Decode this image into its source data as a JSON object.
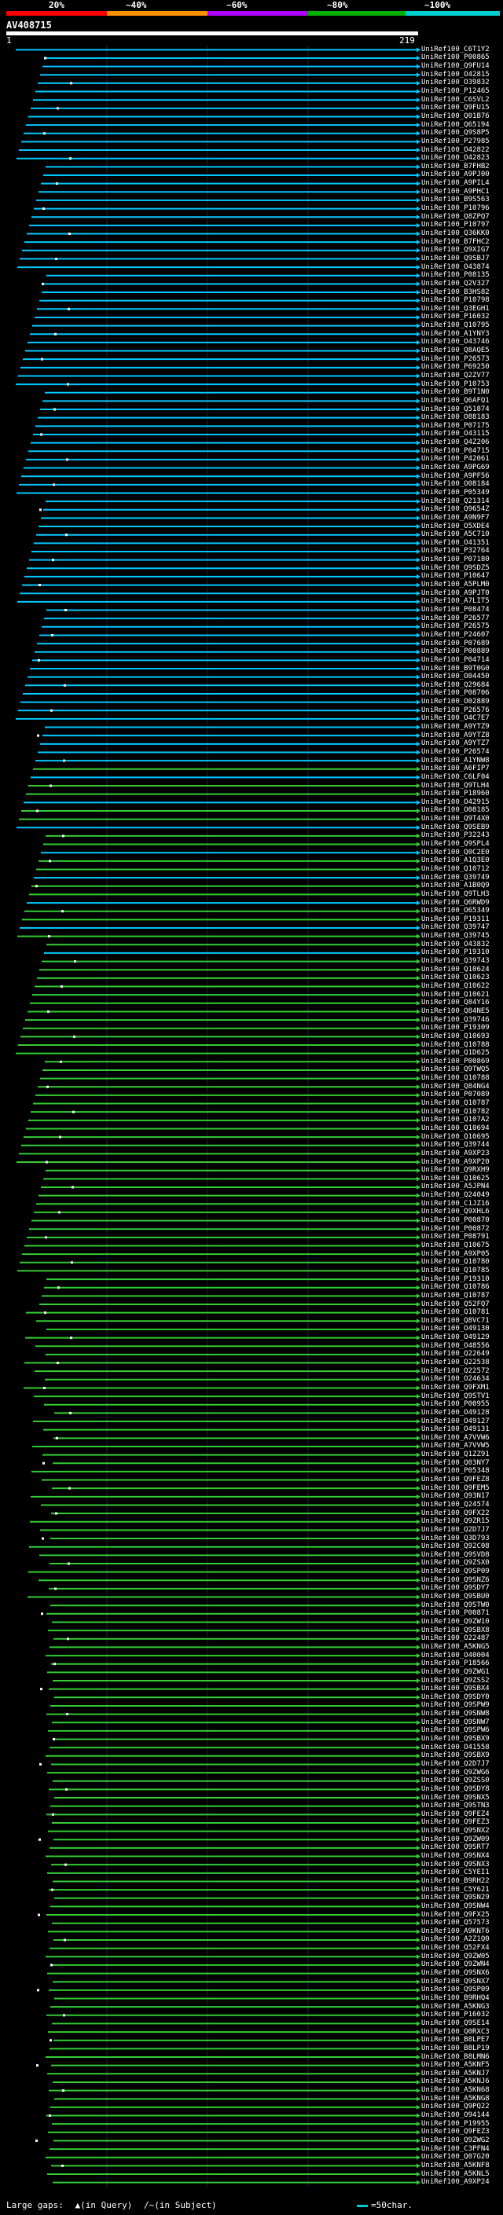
{
  "legend": {
    "ticks": [
      {
        "label": "20%",
        "color": "#ff0000"
      },
      {
        "label": "~40%",
        "color": "#ff9000"
      },
      {
        "label": "~60%",
        "color": "#b000ff"
      },
      {
        "label": "~80%",
        "color": "#00b000"
      },
      {
        "label": "~100%",
        "color": "#00d0d0"
      }
    ]
  },
  "query": {
    "id": "AV408715",
    "start": "1",
    "end": "219"
  },
  "rows_meta": {
    "colors": {
      "cyan": "#00c8ff",
      "green": "#33cc33",
      "magenta": "#ff44ff"
    }
  },
  "rows": [
    "UniRef100_C6T1Y2",
    "UniRef100_P00865",
    "UniRef100_Q9FU14",
    "UniRef100_O42815",
    "UniRef100_O39832",
    "UniRef100_P12465",
    "UniRef100_C6SVL2",
    "UniRef100_Q9FU15",
    "UniRef100_Q01B76",
    "UniRef100_Q65194",
    "UniRef100_Q9S8P5",
    "UniRef100_P27985",
    "UniRef100_O42822",
    "UniRef100_O42823",
    "UniRef100_B7FHB2",
    "UniRef100_A9PJ00",
    "UniRef100_A9PIL4",
    "UniRef100_A9PHC1",
    "UniRef100_B9S563",
    "UniRef100_P10796",
    "UniRef100_Q8ZPQ7",
    "UniRef100_P10797",
    "UniRef100_Q36KK0",
    "UniRef100_B7FHC2",
    "UniRef100_Q9XIG7",
    "UniRef100_Q9SBJ7",
    "UniRef100_O43874",
    "UniRef100_P08135",
    "UniRef100_Q2V327",
    "UniRef100_B3HS82",
    "UniRef100_P10798",
    "UniRef100_Q3EGH1",
    "UniRef100_P16032",
    "UniRef100_Q10795",
    "UniRef100_A1YNY3",
    "UniRef100_O43746",
    "UniRef100_Q8AQE5",
    "UniRef100_P26573",
    "UniRef100_P69250",
    "UniRef100_Q2ZV77",
    "UniRef100_P10753",
    "UniRef100_B9T1N0",
    "UniRef100_Q6AFQ1",
    "UniRef100_Q51874",
    "UniRef100_O88183",
    "UniRef100_P07175",
    "UniRef100_O43115",
    "UniRef100_Q4Z206",
    "UniRef100_P04715",
    "UniRef100_P42061",
    "UniRef100_A9PG69",
    "UniRef100_A9PF56",
    "UniRef100_O08184",
    "UniRef100_P05349",
    "UniRef100_Q21314",
    "UniRef100_Q9654Z",
    "UniRef100_A9N9F7",
    "UniRef100_O5XDE4",
    "UniRef100_A5C710",
    "UniRef100_O41351",
    "UniRef100_P32764",
    "UniRef100_P07180",
    "UniRef100_Q9SDZ5",
    "UniRef100_P10647",
    "UniRef100_A5PLM0",
    "UniRef100_A9PJT0",
    "UniRef100_A7LIT5",
    "UniRef100_P08474",
    "UniRef100_P26577",
    "UniRef100_P26575",
    "UniRef100_P24607",
    "UniRef100_P07689",
    "UniRef100_P00889",
    "UniRef100_P04714",
    "UniRef100_B9T0G0",
    "UniRef100_O04450",
    "UniRef100_Q29684",
    "UniRef100_P08706",
    "UniRef100_O02889",
    "UniRef100_P26576",
    "UniRef100_O4C7E7",
    "UniRef100_A9YTZ9",
    "UniRef100_A9YTZ8",
    "UniRef100_A9YTZ7",
    "UniRef100_P26574",
    "UniRef100_A1YNW8",
    "UniRef100_A6FIP7",
    "UniRef100_C6LF04",
    "UniRef100_Q9TLH4",
    "UniRef100_P18960",
    "UniRef100_O42915",
    "UniRef100_O08185",
    "UniRef100_Q9T4X0",
    "UniRef100_Q9SEB9",
    "UniRef100_P32243",
    "UniRef100_Q9SPL4",
    "UniRef100_Q0C2E0",
    "UniRef100_A1Q3E0",
    "UniRef100_Q10712",
    "UniRef100_Q39749",
    "UniRef100_A1B0Q9",
    "UniRef100_Q9TLH3",
    "UniRef100_Q6RWD9",
    "UniRef100_O65349",
    "UniRef100_P19311",
    "UniRef100_Q39747",
    "UniRef100_Q39745",
    "UniRef100_O43832",
    "UniRef100_P19310",
    "UniRef100_Q39743",
    "UniRef100_Q10624",
    "UniRef100_Q10623",
    "UniRef100_Q10622",
    "UniRef100_Q10621",
    "UniRef100_Q84Y16",
    "UniRef100_Q84NE5",
    "UniRef100_Q39746",
    "UniRef100_P19309",
    "UniRef100_Q10693",
    "UniRef100_Q10788",
    "UniRef100_Q1D625",
    "UniRef100_P00869",
    "UniRef100_Q9TWQ5",
    "UniRef100_Q10788",
    "UniRef100_Q84NG4",
    "UniRef100_P07089",
    "UniRef100_Q10787",
    "UniRef100_Q10782",
    "UniRef100_Q107A2",
    "UniRef100_Q10694",
    "UniRef100_Q10695",
    "UniRef100_Q39744",
    "UniRef100_A9XP23",
    "UniRef100_A9XP20",
    "UniRef100_Q9RXH9",
    "UniRef100_Q10625",
    "UniRef100_A5JPN4",
    "UniRef100_Q24049",
    "UniRef100_C1JZ16",
    "UniRef100_Q9XHL6",
    "UniRef100_P00870",
    "UniRef100_P00872",
    "UniRef100_P08791",
    "UniRef100_Q10675",
    "UniRef100_A9XP05",
    "UniRef100_Q10780",
    "UniRef100_Q10785",
    "UniRef100_P19310",
    "UniRef100_Q10786",
    "UniRef100_Q10787",
    "UniRef100_Q52FQ7",
    "UniRef100_Q10781",
    "UniRef100_Q8VC71",
    "UniRef100_O49130",
    "UniRef100_O49129",
    "UniRef100_O48556",
    "UniRef100_Q22649",
    "UniRef100_Q22538",
    "UniRef100_Q22572",
    "UniRef100_O24634",
    "UniRef100_Q9FXM1",
    "UniRef100_Q9STV1",
    "UniRef100_P00955",
    "UniRef100_O49128",
    "UniRef100_O49127",
    "UniRef100_O49131",
    "UniRef100_A7VVW6",
    "UniRef100_A7VVW5",
    "UniRef100_Q1ZZ91",
    "UniRef100_Q03NY7",
    "UniRef100_P05348",
    "UniRef100_Q9FEZ8",
    "UniRef100_Q9FEM5",
    "UniRef100_Q93N17",
    "UniRef100_Q24574",
    "UniRef100_Q9FX22",
    "UniRef100_Q9ZR15",
    "UniRef100_Q2D7J7",
    "UniRef100_Q3D793",
    "UniRef100_Q92C08",
    "UniRef100_Q9SVD8",
    "UniRef100_Q9ZSX0",
    "UniRef100_Q9SP09",
    "UniRef100_Q9SNZ6",
    "UniRef100_Q9SDY7",
    "UniRef100_Q9SBU0",
    "UniRef100_Q9STW0",
    "UniRef100_P00871",
    "UniRef100_Q9ZW10",
    "UniRef100_Q9SBX8",
    "UniRef100_O22487",
    "UniRef100_A5KNG5",
    "UniRef100_O40004",
    "UniRef100_P18566",
    "UniRef100_Q9ZWG1",
    "UniRef100_Q9ZSS2",
    "UniRef100_Q9SBX4",
    "UniRef100_Q9SDY0",
    "UniRef100_Q9SPW9",
    "UniRef100_Q9SNW8",
    "UniRef100_Q9SNW7",
    "UniRef100_Q9SPW6",
    "UniRef100_Q9SBX9",
    "UniRef100_O41558",
    "UniRef100_Q9SBX9",
    "UniRef100_Q2D7J7",
    "UniRef100_Q9ZWG6",
    "UniRef100_Q9ZSS0",
    "UniRef100_Q9SDY8",
    "UniRef100_Q9SNX5",
    "UniRef100_Q9STN3",
    "UniRef100_Q9FEZ4",
    "UniRef100_Q9FEZ3",
    "UniRef100_Q9SNX2",
    "UniRef100_Q9ZW09",
    "UniRef100_Q9SRT7",
    "UniRef100_Q9SNX4",
    "UniRef100_Q9SNX3",
    "UniRef100_C5YEI1",
    "UniRef100_B9RH22",
    "UniRef100_C5Y621",
    "UniRef100_Q9SN29",
    "UniRef100_Q9SNW4",
    "UniRef100_Q9FX25",
    "UniRef100_Q57573",
    "UniRef100_A9KNT6",
    "UniRef100_A2Z1Q0",
    "UniRef100_Q52FX4",
    "UniRef100_Q9ZW05",
    "UniRef100_Q9ZWN4",
    "UniRef100_Q9SNX6",
    "UniRef100_Q9SNX7",
    "UniRef100_Q9SP09",
    "UniRef100_B9RHQ4",
    "UniRef100_A5KNG3",
    "UniRef100_P16032",
    "UniRef100_Q9SE14",
    "UniRef100_Q0RXC3",
    "UniRef100_B8LPE7",
    "UniRef100_B8LP19",
    "UniRef100_B8LMN6",
    "UniRef100_A5KNF5",
    "UniRef100_A5KNJ7",
    "UniRef100_A5KNJ6",
    "UniRef100_A5KN68",
    "UniRef100_A5KNG8",
    "UniRef100_Q9PQ22",
    "UniRef100_O94144",
    "UniRef100_P19955",
    "UniRef100_Q9FEZ3",
    "UniRef100_Q9ZWG2",
    "UniRef100_C3PFN4",
    "UniRef100_Q07G20",
    "UniRef100_A5KNF8",
    "UniRef100_A5KNL5",
    "UniRef100_A9XP24"
  ],
  "footer": {
    "gaps_label": "Large gaps:",
    "query_gap": "▲(in Query)",
    "subject_gap": "/~(in Subject)",
    "scale_label": "=50char."
  }
}
